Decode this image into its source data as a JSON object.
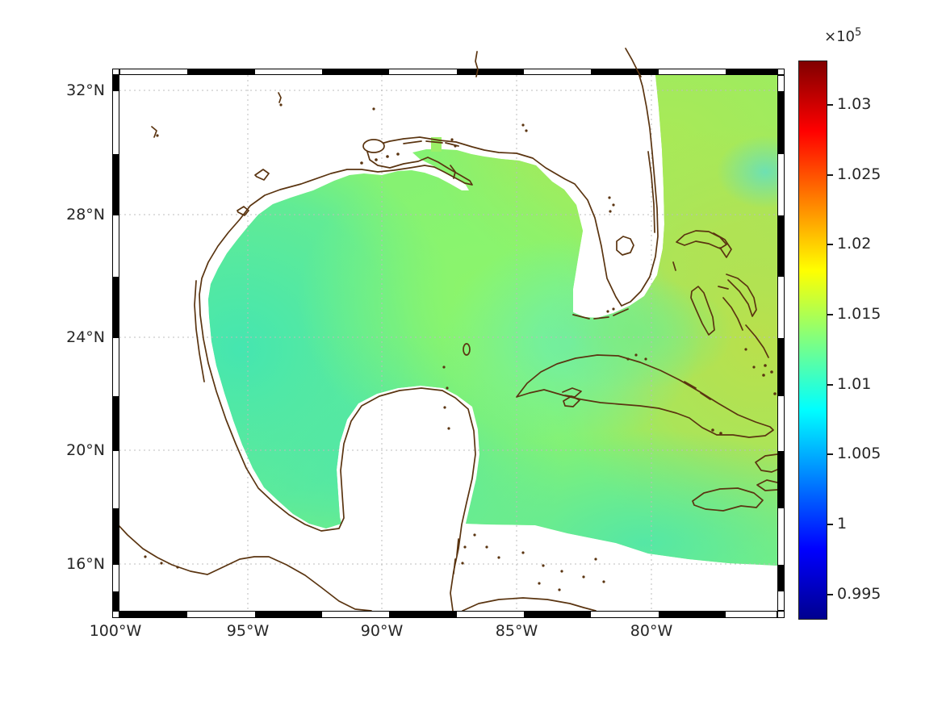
{
  "figure": {
    "kind": "geographic pseudocolor map, Mercator-style projection, Gulf of Mexico / western Atlantic / Caribbean",
    "background": "#ffffff"
  },
  "axes": {
    "x": {
      "ticks": [
        "100°W",
        "95°W",
        "90°W",
        "85°W",
        "80°W"
      ]
    },
    "y": {
      "ticks": [
        "32°N",
        "28°N",
        "24°N",
        "20°N",
        "16°N"
      ]
    }
  },
  "colorbar": {
    "multiplier_base": "×10",
    "multiplier_exponent": "5",
    "ticks": [
      "1.03",
      "1.025",
      "1.02",
      "1.015",
      "1.01",
      "1.005",
      "1",
      "0.995"
    ],
    "colormap": "jet"
  },
  "chart_data": {
    "type": "heatmap",
    "projection": "mercator",
    "extent": {
      "lon": [
        "100°W",
        "≈75.5°W"
      ],
      "lat": [
        "≈14.5°N",
        "≈32.5°N"
      ]
    },
    "x_tick_labels": [
      "100°W",
      "95°W",
      "90°W",
      "85°W",
      "80°W"
    ],
    "y_tick_labels": [
      "16°N",
      "20°N",
      "24°N",
      "28°N",
      "32°N"
    ],
    "grid": "dotted gray at tick lines",
    "frame_style": "alternating black/white fancy border, 2.5° longitude and 2° latitude segments",
    "colorbar": {
      "colormap": "jet",
      "scale_label": "×10^5",
      "tick_labels_top_to_bottom": [
        "1.03",
        "1.025",
        "1.02",
        "1.015",
        "1.01",
        "1.005",
        "1",
        "0.995"
      ],
      "tick_values_x1e5": [
        1.03,
        1.025,
        1.02,
        1.015,
        1.01,
        1.005,
        1.0,
        0.995
      ],
      "approx_color_axis_range_x1e5": [
        0.9933,
        1.0333
      ]
    },
    "field": {
      "description": "smooth scalar field shown over ocean cells only; continental land and area outside model domain are white; coastlines drawn in dark brown; Cuba, Bahamas and Jamaica are overlaid by the field with outlined coasts",
      "approx_visible_value_range_x1e5": [
        1.008,
        1.017
      ],
      "sampled_values_x1e5": [
        {
          "area": "western Gulf of Mexico shelf",
          "value": 1.01
        },
        {
          "area": "Bay of Campeche",
          "value": 1.01
        },
        {
          "area": "central Gulf of Mexico",
          "value": 1.0125
        },
        {
          "area": "northeastern Gulf of Mexico",
          "value": 1.013
        },
        {
          "area": "Florida Straits",
          "value": 1.013
        },
        {
          "area": "Atlantic, northeast corner",
          "value": 1.0145
        },
        {
          "area": "Atlantic east of the Bahamas",
          "value": 1.016
        },
        {
          "area": "Caribbean south of Cuba",
          "value": 1.012
        }
      ],
      "coastline_color": "#5a3410"
    },
    "legend_position": "vertical colorbar at right"
  }
}
